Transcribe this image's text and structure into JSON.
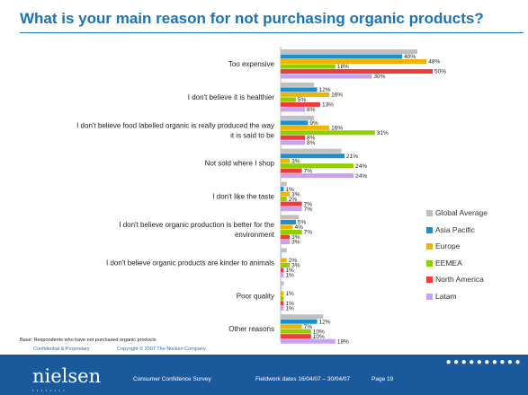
{
  "slide": {
    "title": "What is your main reason for not purchasing organic products?",
    "base_note": "Base: Respondents who have not purchased organic products",
    "confidential": "Confidential & Proprietary",
    "copyright": "Copyright © 2007 The Nielsen Company"
  },
  "footer": {
    "logo": "nielsen",
    "logo_dots": "••••••••",
    "dots": "●●●●●●●●●●",
    "survey": "Consumer Confidence Survey",
    "fieldwork": "Fieldwork dates 16/04/07 – 30/04/07",
    "page": "Page 19"
  },
  "colors": {
    "global": "#c0c0c0",
    "asia": "#1c8fcf",
    "europe": "#f0b400",
    "eemea": "#8fce00",
    "north_america": "#ee3b3b",
    "latam": "#c7a2ee"
  },
  "chart_data": {
    "type": "bar",
    "orientation": "horizontal",
    "title": "What is your main reason for not purchasing organic products?",
    "xlim": [
      0,
      55
    ],
    "categories": [
      [
        "Too expensive"
      ],
      [
        "I don't believe it is healthier"
      ],
      [
        "I don't believe food labelled organic is really produced the way",
        "it is said to be"
      ],
      [
        "Not sold where I shop"
      ],
      [
        "I don't like the taste"
      ],
      [
        "I don't believe organic production is better for the",
        "environment"
      ],
      [
        "I don't believe organic products are kinder to animals"
      ],
      [
        "Poor quality"
      ],
      [
        "Other reasons"
      ]
    ],
    "series": [
      {
        "name": "Global Average",
        "color": "#c0c0c0",
        "values": [
          45,
          11,
          11,
          20,
          2,
          6,
          2,
          1,
          14
        ]
      },
      {
        "name": "Asia Pacific",
        "color": "#1c8fcf",
        "values": [
          40,
          12,
          9,
          21,
          1,
          5,
          0,
          0,
          12
        ]
      },
      {
        "name": "Europe",
        "color": "#f0b400",
        "values": [
          48,
          16,
          16,
          3,
          3,
          4,
          2,
          1,
          7
        ]
      },
      {
        "name": "EEMEA",
        "color": "#8fce00",
        "values": [
          18,
          5,
          31,
          24,
          2,
          7,
          3,
          1,
          10
        ]
      },
      {
        "name": "North America",
        "color": "#ee3b3b",
        "values": [
          50,
          13,
          8,
          7,
          7,
          3,
          1,
          1,
          10
        ]
      },
      {
        "name": "Latam",
        "color": "#c7a2ee",
        "values": [
          30,
          8,
          8,
          24,
          7,
          3,
          1,
          1,
          18
        ]
      }
    ],
    "labels": [
      [
        "",
        "40%",
        "48%",
        "18%",
        "50%",
        "30%"
      ],
      [
        "",
        "12%",
        "16%",
        "5%",
        "13%",
        "8%"
      ],
      [
        "",
        "9%",
        "16%",
        "31%",
        "8%",
        "8%"
      ],
      [
        "",
        "21%",
        "3%",
        "24%",
        "7%",
        "24%"
      ],
      [
        "",
        "1%",
        "3%",
        "2%",
        "7%",
        "7%"
      ],
      [
        "",
        "5%",
        "4%",
        "7%",
        "3%",
        "3%"
      ],
      [
        "",
        "",
        "2%",
        "3%",
        "1%",
        "1%"
      ],
      [
        "",
        "",
        "1%",
        "",
        "1%",
        "1%"
      ],
      [
        "",
        "12%",
        "7%",
        "10%",
        "10%",
        "18%"
      ]
    ],
    "legend_position": "right"
  }
}
